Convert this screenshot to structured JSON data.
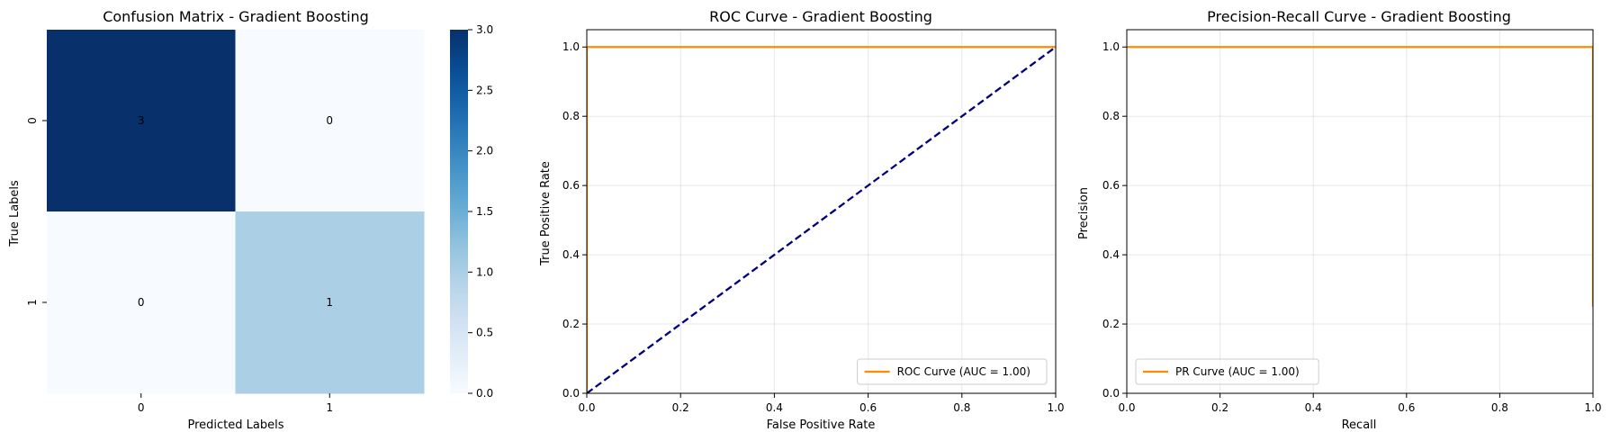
{
  "chart_data": [
    {
      "type": "heatmap",
      "title": "Confusion Matrix - Gradient Boosting",
      "xlabel": "Predicted Labels",
      "ylabel": "True Labels",
      "x_ticks": [
        "0",
        "1"
      ],
      "y_ticks": [
        "0",
        "1"
      ],
      "matrix": [
        [
          3,
          0
        ],
        [
          0,
          1
        ]
      ],
      "colorbar": {
        "range": [
          0,
          3
        ],
        "ticks": [
          "0.0",
          "0.5",
          "1.0",
          "1.5",
          "2.0",
          "2.5",
          "3.0"
        ],
        "colormap": "Blues"
      },
      "colors": {
        "low": "#f7fbff",
        "high": "#08306b"
      }
    },
    {
      "type": "line",
      "title": "ROC Curve - Gradient Boosting",
      "xlabel": "False Positive Rate",
      "ylabel": "True Positive Rate",
      "xlim": [
        0,
        1
      ],
      "ylim": [
        0,
        1.05
      ],
      "x_ticks": [
        "0.0",
        "0.2",
        "0.4",
        "0.6",
        "0.8",
        "1.0"
      ],
      "y_ticks": [
        "0.0",
        "0.2",
        "0.4",
        "0.6",
        "0.8",
        "1.0"
      ],
      "grid": true,
      "legend": "lower right",
      "series": [
        {
          "name": "ROC Curve (AUC = 1.00)",
          "color": "#ff8c00",
          "style": "solid",
          "x": [
            0,
            0,
            1
          ],
          "y": [
            0,
            1,
            1
          ]
        },
        {
          "color": "#000080",
          "style": "dashed",
          "x": [
            0,
            1
          ],
          "y": [
            0,
            1
          ]
        }
      ]
    },
    {
      "type": "line",
      "title": "Precision-Recall Curve - Gradient Boosting",
      "xlabel": "Recall",
      "ylabel": "Precision",
      "xlim": [
        0,
        1
      ],
      "ylim": [
        0,
        1.05
      ],
      "x_ticks": [
        "0.0",
        "0.2",
        "0.4",
        "0.6",
        "0.8",
        "1.0"
      ],
      "y_ticks": [
        "0.0",
        "0.2",
        "0.4",
        "0.6",
        "0.8",
        "1.0"
      ],
      "grid": true,
      "legend": "lower left",
      "series": [
        {
          "name": "PR Curve (AUC = 1.00)",
          "color": "#ff8c00",
          "style": "solid",
          "x": [
            0,
            1,
            1
          ],
          "y": [
            1,
            1,
            0.25
          ]
        }
      ]
    }
  ]
}
